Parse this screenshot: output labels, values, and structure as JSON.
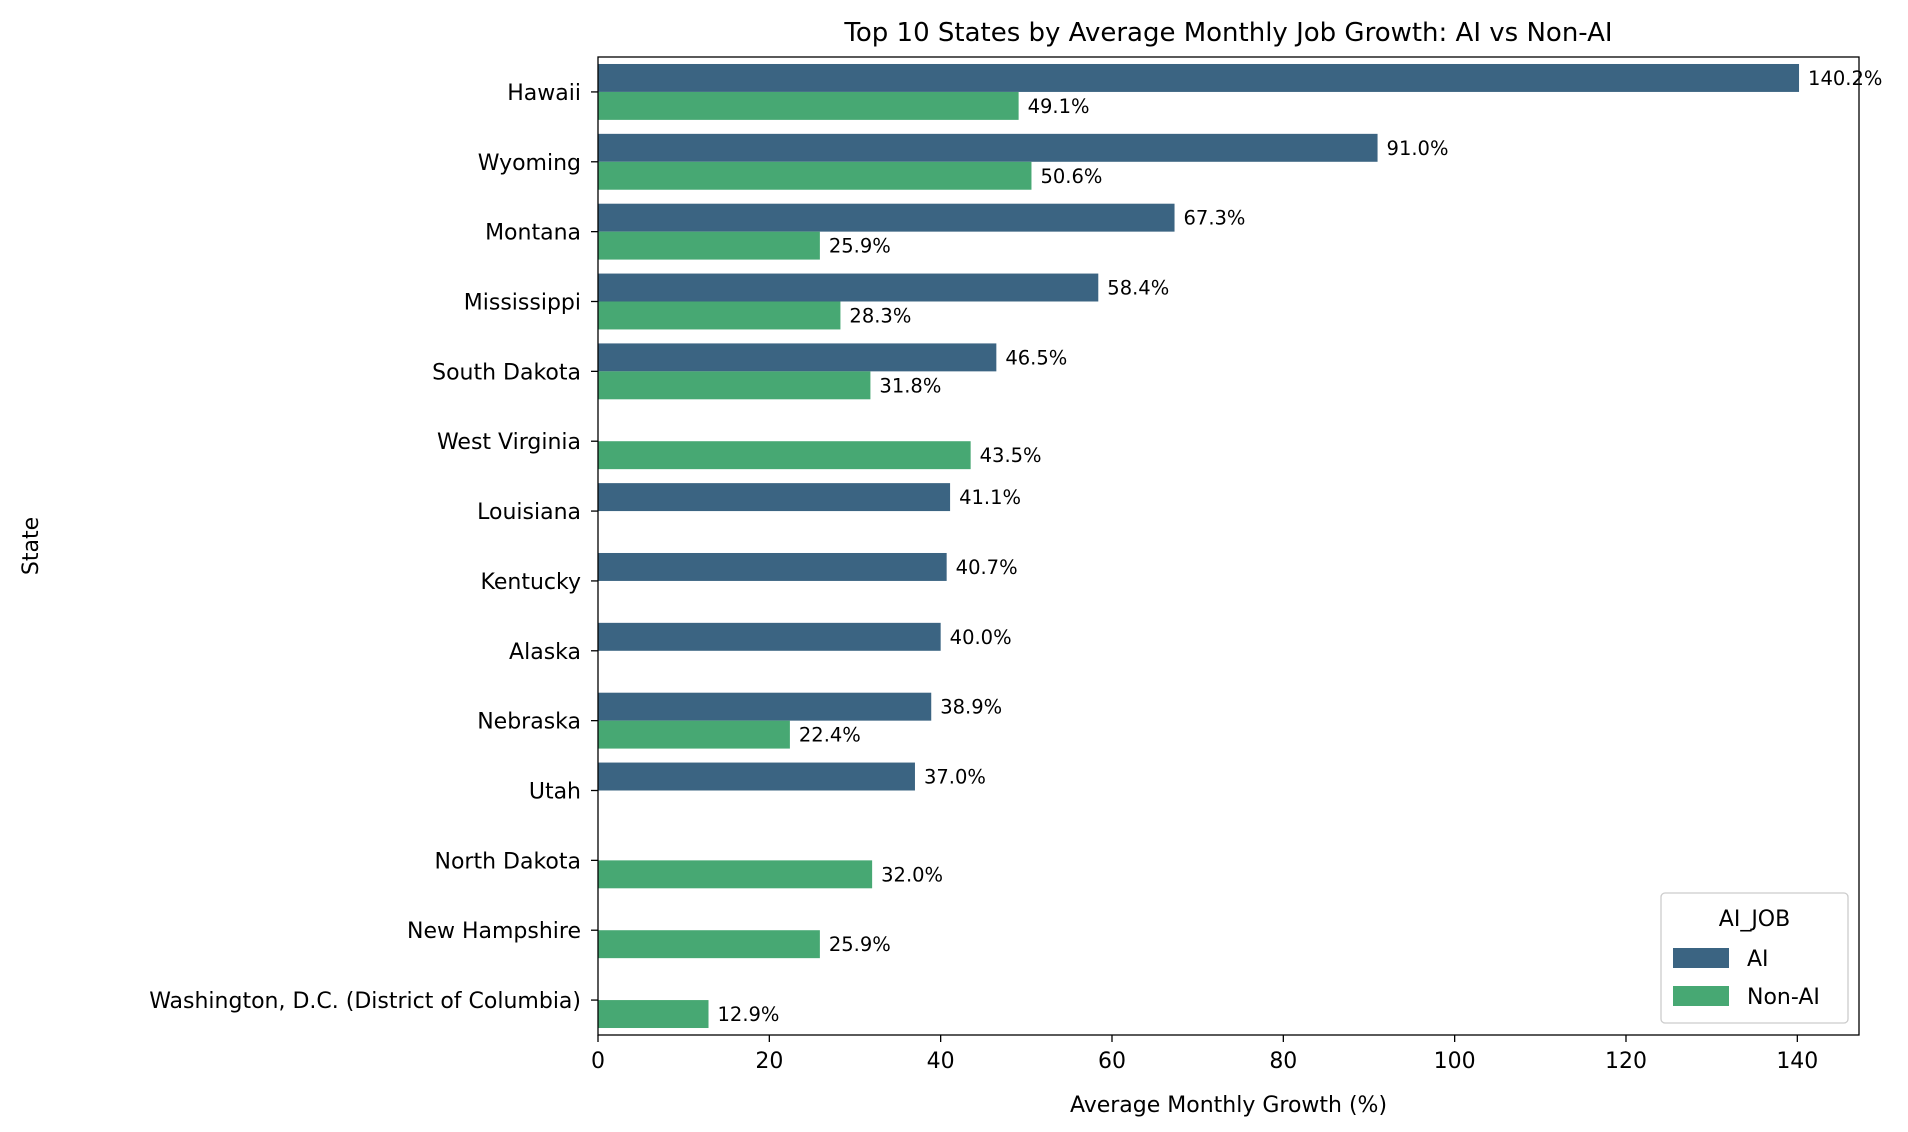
{
  "chart_data": {
    "type": "bar",
    "orientation": "horizontal",
    "title": "Top 10 States by Average Monthly Job Growth: AI vs Non-AI",
    "xlabel": "Average Monthly Growth (%)",
    "ylabel": "State",
    "xlim": [
      0,
      147.2
    ],
    "xticks": [
      0,
      20,
      40,
      60,
      80,
      100,
      120,
      140
    ],
    "categories": [
      "Hawaii",
      "Wyoming",
      "Montana",
      "Mississippi",
      "South Dakota",
      "West Virginia",
      "Louisiana",
      "Kentucky",
      "Alaska",
      "Nebraska",
      "Utah",
      "North Dakota",
      "New Hampshire",
      "Washington, D.C. (District of Columbia)"
    ],
    "series": [
      {
        "name": "AI",
        "color": "#3b6482",
        "values": [
          140.2,
          91.0,
          67.3,
          58.4,
          46.5,
          null,
          41.1,
          40.7,
          40.0,
          38.9,
          37.0,
          null,
          null,
          null
        ],
        "labels": [
          "140.2%",
          "91.0%",
          "67.3%",
          "58.4%",
          "46.5%",
          null,
          "41.1%",
          "40.7%",
          "40.0%",
          "38.9%",
          "37.0%",
          null,
          null,
          null
        ]
      },
      {
        "name": "Non-AI",
        "color": "#47a873",
        "values": [
          49.1,
          50.6,
          25.9,
          28.3,
          31.8,
          43.5,
          null,
          null,
          null,
          22.4,
          null,
          32.0,
          25.9,
          12.9
        ],
        "labels": [
          "49.1%",
          "50.6%",
          "25.9%",
          "28.3%",
          "31.8%",
          "43.5%",
          null,
          null,
          null,
          "22.4%",
          null,
          "32.0%",
          "25.9%",
          "12.9%"
        ]
      }
    ],
    "legend": {
      "title": "AI_JOB",
      "position": "bottom-right"
    },
    "grid": false
  }
}
